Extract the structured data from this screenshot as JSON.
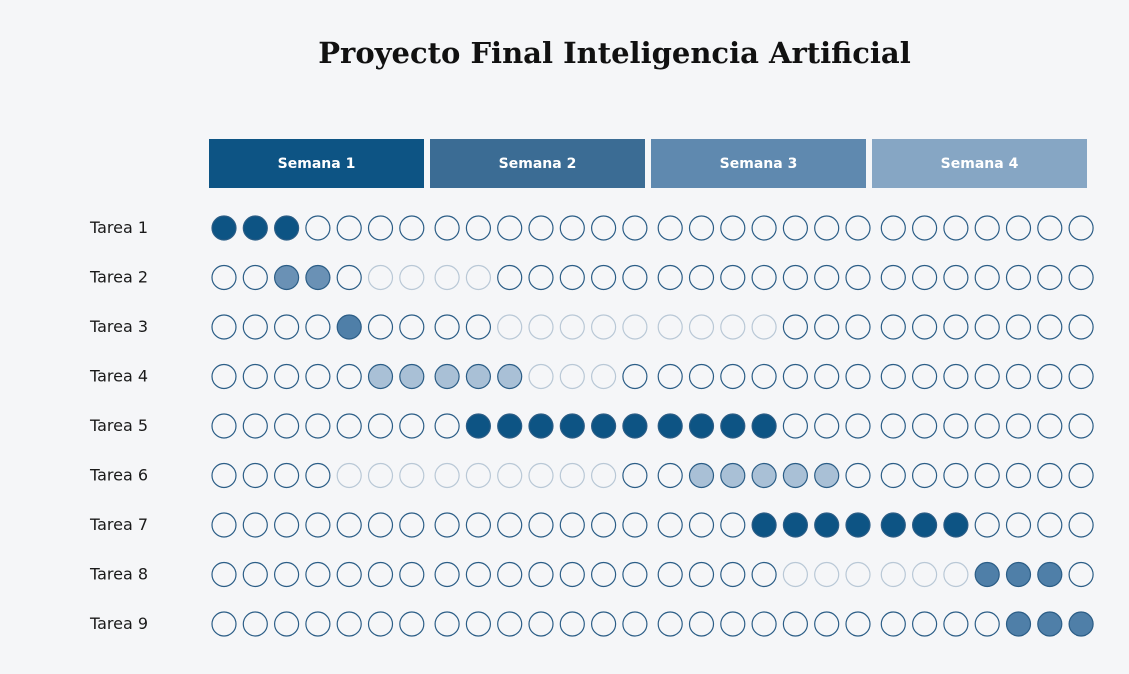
{
  "title": "Proyecto Final Inteligencia Artificial",
  "colors": {
    "background": "#f5f6f8",
    "outline": "#2b5d86",
    "outline_light": "#b9c8d6",
    "dark": "#0d5484",
    "medium": "#6a91b5",
    "medium2": "#4f7fa8",
    "light": "#a9c0d6",
    "week_headers": [
      "#0d5484",
      "#3b6c94",
      "#5f89af",
      "#86a6c4"
    ]
  },
  "chart_data": {
    "type": "table",
    "weeks": [
      "Semana 1",
      "Semana 2",
      "Semana 3",
      "Semana 4"
    ],
    "days_per_week": 7,
    "total_days": 28,
    "tasks": [
      {
        "label": "Tarea 1",
        "filled": [
          1,
          3
        ],
        "fill": "dark",
        "faded": []
      },
      {
        "label": "Tarea 2",
        "filled": [
          3,
          4
        ],
        "fill": "medium",
        "faded": [
          6,
          9
        ]
      },
      {
        "label": "Tarea 3",
        "filled": [
          5,
          5
        ],
        "fill": "medium2",
        "faded": [
          10,
          18
        ]
      },
      {
        "label": "Tarea 4",
        "filled": [
          6,
          10
        ],
        "fill": "light",
        "faded": [
          11,
          13
        ]
      },
      {
        "label": "Tarea 5",
        "filled": [
          9,
          18
        ],
        "fill": "dark",
        "faded": []
      },
      {
        "label": "Tarea 6",
        "filled": [
          16,
          20
        ],
        "fill": "light",
        "faded": [
          5,
          13
        ]
      },
      {
        "label": "Tarea 7",
        "filled": [
          18,
          24
        ],
        "fill": "dark",
        "faded": []
      },
      {
        "label": "Tarea  8",
        "filled": [
          25,
          27
        ],
        "fill": "medium2",
        "faded": [
          19,
          24
        ]
      },
      {
        "label": "Tarea 9",
        "filled": [
          26,
          28
        ],
        "fill": "medium2",
        "faded": []
      }
    ]
  }
}
